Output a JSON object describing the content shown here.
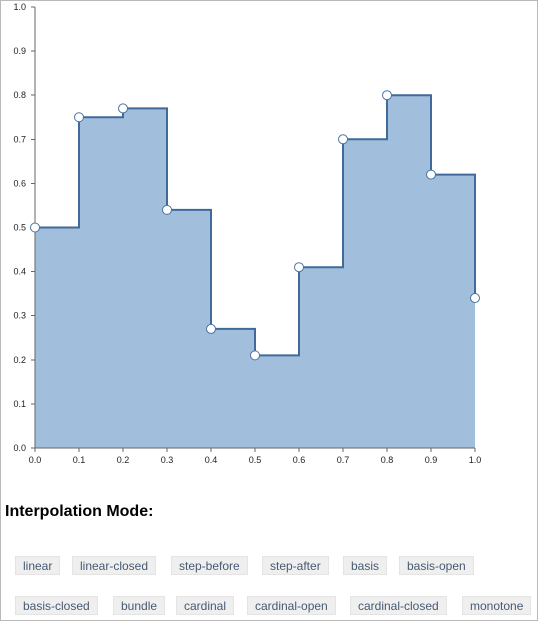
{
  "chart_data": {
    "type": "area",
    "interpolation": "step-after",
    "x": [
      0.0,
      0.1,
      0.2,
      0.3,
      0.4,
      0.5,
      0.6,
      0.7,
      0.8,
      0.9,
      1.0
    ],
    "values": [
      0.5,
      0.75,
      0.77,
      0.54,
      0.27,
      0.21,
      0.41,
      0.7,
      0.8,
      0.62,
      0.34
    ],
    "xlim": [
      0,
      1
    ],
    "ylim": [
      0,
      1
    ],
    "x_ticks": [
      "0.0",
      "0.1",
      "0.2",
      "0.3",
      "0.4",
      "0.5",
      "0.6",
      "0.7",
      "0.8",
      "0.9",
      "1.0"
    ],
    "y_ticks": [
      "0.0",
      "0.1",
      "0.2",
      "0.3",
      "0.4",
      "0.5",
      "0.6",
      "0.7",
      "0.8",
      "0.9",
      "1.0"
    ],
    "grid": false,
    "colors": {
      "fill": "#a2bedd",
      "line": "#3f6a9a",
      "point_fill": "#ffffff",
      "point_stroke": "#4a74a2"
    }
  },
  "controls": {
    "heading": "Interpolation Mode:",
    "modes": [
      "linear",
      "linear-closed",
      "step-before",
      "step-after",
      "basis",
      "basis-open",
      "basis-closed",
      "bundle",
      "cardinal",
      "cardinal-open",
      "cardinal-closed",
      "monotone"
    ]
  }
}
